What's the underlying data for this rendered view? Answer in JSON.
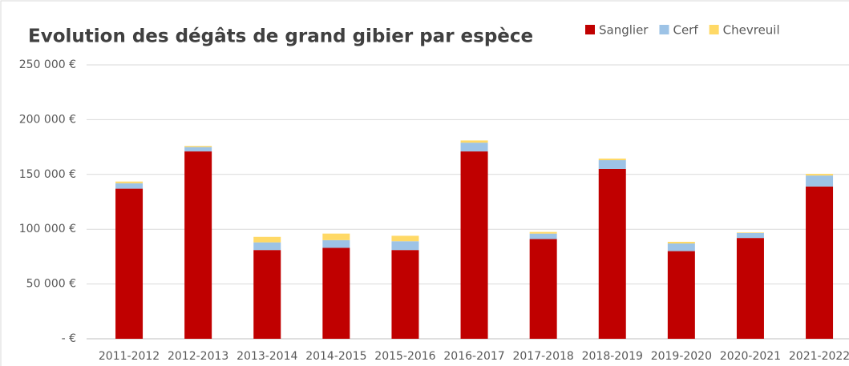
{
  "chart_data": {
    "type": "stacked_bar",
    "title": "Evolution des dégâts de grand gibier par espèce",
    "categories": [
      "2011-2012",
      "2012-2013",
      "2013-2014",
      "2014-2015",
      "2015-2016",
      "2016-2017",
      "2017-2018",
      "2018-2019",
      "2019-2020",
      "2020-2021",
      "2021-2022"
    ],
    "series": [
      {
        "name": "Sanglier",
        "color": "#c00000",
        "values": [
          137000,
          171000,
          81000,
          83000,
          81000,
          171000,
          91000,
          155000,
          80000,
          92000,
          139000
        ]
      },
      {
        "name": "Cerf",
        "color": "#9dc3e6",
        "values": [
          5000,
          4000,
          7000,
          7000,
          8000,
          8000,
          5000,
          8000,
          7000,
          4500,
          10000
        ]
      },
      {
        "name": "Chevreuil",
        "color": "#ffd966",
        "values": [
          1500,
          1000,
          5000,
          6000,
          5000,
          2000,
          1500,
          1500,
          1500,
          500,
          1500
        ]
      }
    ],
    "ylim": [
      0,
      250000
    ],
    "yticks": [
      {
        "value": 0,
        "label": "-   €"
      },
      {
        "value": 50000,
        "label": "50 000 €"
      },
      {
        "value": 100000,
        "label": "100 000 €"
      },
      {
        "value": 150000,
        "label": "150 000 €"
      },
      {
        "value": 200000,
        "label": "200 000 €"
      },
      {
        "value": 250000,
        "label": "250 000 €"
      }
    ],
    "grid": true,
    "legend": "top-right"
  }
}
